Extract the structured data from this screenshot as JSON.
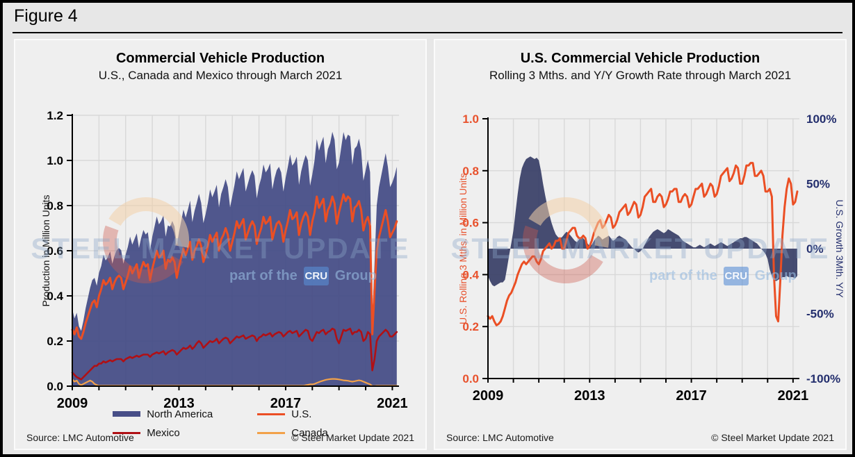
{
  "figure_label": "Figure 4",
  "watermark": {
    "line1": "STEEL MARKET UPDATE",
    "part_of": "part of the",
    "cru": "CRU",
    "group": "Group"
  },
  "colors": {
    "page_bg": "#e7e7e7",
    "panel_bg": "#efefef",
    "grid": "#d8d8d8",
    "axis": "#000000",
    "north_america_area": "#474e87",
    "us_line": "#eb4f24",
    "mexico_line": "#b01015",
    "canada_line": "#f2a149",
    "growth_area": "#3c4269",
    "rolling_line": "#eb4f24",
    "watermark_text": "#8ca6c7",
    "cru_badge_bg": "#588ed5"
  },
  "panels": [
    {
      "source": "Source: LMC Automotive",
      "copyright": "© Steel Market Update 2021"
    },
    {
      "source": "Source: LMC Automotive",
      "copyright": "© Steel Market Update 2021"
    }
  ],
  "chart_data": [
    {
      "type": "area+line",
      "title": "Commercial Vehicle Production",
      "subtitle": "U.S., Canada and Mexico through March 2021",
      "ylabel": "Production in Million Units",
      "x_interval": "monthly",
      "x_start": "2009-01",
      "x_end": "2021-03",
      "x_range": [
        2009,
        2021.25
      ],
      "xticks": [
        2009,
        2013,
        2017,
        2021
      ],
      "xtick_labels": [
        "2009",
        "2013",
        "2017",
        "2021"
      ],
      "ylim": [
        0,
        1.2
      ],
      "yticks": [
        0,
        0.2,
        0.4,
        0.6,
        0.8,
        1.0,
        1.2
      ],
      "ytick_labels": [
        "0.0",
        "0.2",
        "0.4",
        "0.6",
        "0.8",
        "1.0",
        "1.2"
      ],
      "grid": true,
      "legend_position": "bottom",
      "series": [
        {
          "name": "North America",
          "type": "area",
          "color": "#474e87",
          "baseline": 0,
          "values": [
            0.34,
            0.3,
            0.325,
            0.265,
            0.245,
            0.29,
            0.345,
            0.39,
            0.435,
            0.47,
            0.48,
            0.445,
            0.502,
            0.532,
            0.582,
            0.557,
            0.572,
            0.597,
            0.542,
            0.577,
            0.602,
            0.612,
            0.602,
            0.542,
            0.582,
            0.617,
            0.662,
            0.627,
            0.652,
            0.677,
            0.612,
            0.657,
            0.692,
            0.672,
            0.682,
            0.602,
            0.662,
            0.707,
            0.752,
            0.717,
            0.732,
            0.757,
            0.662,
            0.712,
            0.707,
            0.732,
            0.707,
            0.622,
            0.682,
            0.732,
            0.782,
            0.747,
            0.782,
            0.822,
            0.727,
            0.777,
            0.812,
            0.852,
            0.812,
            0.722,
            0.762,
            0.812,
            0.872,
            0.837,
            0.862,
            0.892,
            0.792,
            0.852,
            0.882,
            0.917,
            0.882,
            0.792,
            0.842,
            0.892,
            0.952,
            0.917,
            0.942,
            0.967,
            0.862,
            0.897,
            0.932,
            0.957,
            0.932,
            0.832,
            0.887,
            0.922,
            0.982,
            0.947,
            0.962,
            0.987,
            0.872,
            0.922,
            0.957,
            0.972,
            0.947,
            0.862,
            0.922,
            0.972,
            1.027,
            0.977,
            0.992,
            1.017,
            0.892,
            0.952,
            0.992,
            1.024,
            1.001,
            0.888,
            0.938,
            1.0,
            1.094,
            1.043,
            1.077,
            1.105,
            0.988,
            1.05,
            1.076,
            1.127,
            1.092,
            0.961,
            0.99,
            1.058,
            1.126,
            1.09,
            1.114,
            1.107,
            0.98,
            1.052,
            1.064,
            1.096,
            1.044,
            0.91,
            0.956,
            1.002,
            0.948,
            0.301,
            0.541,
            0.802,
            0.882,
            0.932,
            0.982,
            1.032,
            0.972,
            0.882,
            0.902,
            0.932,
            0.972
          ]
        },
        {
          "name": "U.S.",
          "type": "line",
          "color": "#eb4f24",
          "width": 3,
          "values": [
            0.25,
            0.23,
            0.26,
            0.22,
            0.21,
            0.24,
            0.28,
            0.31,
            0.34,
            0.37,
            0.38,
            0.35,
            0.4,
            0.43,
            0.47,
            0.45,
            0.46,
            0.48,
            0.43,
            0.46,
            0.48,
            0.49,
            0.48,
            0.43,
            0.46,
            0.49,
            0.53,
            0.5,
            0.52,
            0.54,
            0.48,
            0.52,
            0.55,
            0.53,
            0.54,
            0.47,
            0.52,
            0.56,
            0.6,
            0.57,
            0.58,
            0.6,
            0.52,
            0.56,
            0.55,
            0.57,
            0.55,
            0.48,
            0.53,
            0.57,
            0.61,
            0.58,
            0.61,
            0.64,
            0.56,
            0.6,
            0.62,
            0.65,
            0.62,
            0.55,
            0.58,
            0.62,
            0.67,
            0.64,
            0.66,
            0.68,
            0.6,
            0.65,
            0.67,
            0.7,
            0.67,
            0.6,
            0.64,
            0.68,
            0.73,
            0.7,
            0.72,
            0.74,
            0.65,
            0.68,
            0.71,
            0.73,
            0.71,
            0.63,
            0.67,
            0.7,
            0.75,
            0.72,
            0.73,
            0.75,
            0.65,
            0.69,
            0.72,
            0.73,
            0.71,
            0.64,
            0.69,
            0.73,
            0.78,
            0.74,
            0.75,
            0.77,
            0.67,
            0.72,
            0.75,
            0.77,
            0.75,
            0.67,
            0.73,
            0.77,
            0.84,
            0.79,
            0.81,
            0.83,
            0.73,
            0.78,
            0.8,
            0.84,
            0.81,
            0.72,
            0.77,
            0.81,
            0.85,
            0.82,
            0.84,
            0.83,
            0.73,
            0.79,
            0.8,
            0.82,
            0.78,
            0.69,
            0.73,
            0.75,
            0.71,
            0.23,
            0.42,
            0.6,
            0.66,
            0.7,
            0.74,
            0.78,
            0.73,
            0.66,
            0.68,
            0.7,
            0.73
          ]
        },
        {
          "name": "Mexico",
          "type": "line",
          "color": "#b01015",
          "width": 2.6,
          "values": [
            0.06,
            0.05,
            0.04,
            0.035,
            0.03,
            0.04,
            0.05,
            0.06,
            0.07,
            0.08,
            0.09,
            0.09,
            0.1,
            0.1,
            0.11,
            0.105,
            0.11,
            0.115,
            0.11,
            0.115,
            0.12,
            0.12,
            0.12,
            0.11,
            0.12,
            0.125,
            0.13,
            0.125,
            0.13,
            0.135,
            0.13,
            0.135,
            0.14,
            0.14,
            0.14,
            0.13,
            0.14,
            0.145,
            0.15,
            0.145,
            0.15,
            0.155,
            0.14,
            0.15,
            0.155,
            0.16,
            0.155,
            0.14,
            0.15,
            0.16,
            0.17,
            0.165,
            0.17,
            0.18,
            0.165,
            0.175,
            0.19,
            0.2,
            0.19,
            0.17,
            0.18,
            0.19,
            0.2,
            0.195,
            0.2,
            0.21,
            0.19,
            0.2,
            0.21,
            0.215,
            0.21,
            0.19,
            0.2,
            0.21,
            0.22,
            0.215,
            0.22,
            0.225,
            0.21,
            0.215,
            0.22,
            0.225,
            0.22,
            0.2,
            0.215,
            0.22,
            0.23,
            0.225,
            0.23,
            0.235,
            0.22,
            0.23,
            0.235,
            0.24,
            0.235,
            0.22,
            0.23,
            0.24,
            0.245,
            0.235,
            0.24,
            0.245,
            0.22,
            0.23,
            0.24,
            0.25,
            0.245,
            0.21,
            0.2,
            0.22,
            0.24,
            0.235,
            0.245,
            0.25,
            0.23,
            0.24,
            0.245,
            0.255,
            0.25,
            0.21,
            0.19,
            0.22,
            0.25,
            0.245,
            0.25,
            0.255,
            0.23,
            0.24,
            0.24,
            0.25,
            0.24,
            0.2,
            0.21,
            0.24,
            0.23,
            0.07,
            0.12,
            0.2,
            0.22,
            0.23,
            0.24,
            0.25,
            0.24,
            0.22,
            0.22,
            0.23,
            0.24
          ]
        },
        {
          "name": "Canada",
          "type": "line",
          "color": "#f2a149",
          "width": 2.2,
          "values": [
            0.03,
            0.02,
            0.025,
            0.01,
            0.005,
            0.01,
            0.015,
            0.02,
            0.025,
            0.02,
            0.01,
            0.005,
            0.002,
            0.002,
            0.002,
            0.002,
            0.002,
            0.002,
            0.002,
            0.002,
            0.002,
            0.002,
            0.002,
            0.002,
            0.002,
            0.002,
            0.002,
            0.002,
            0.002,
            0.002,
            0.002,
            0.002,
            0.002,
            0.002,
            0.002,
            0.002,
            0.002,
            0.002,
            0.002,
            0.002,
            0.002,
            0.002,
            0.002,
            0.002,
            0.002,
            0.002,
            0.002,
            0.002,
            0.002,
            0.002,
            0.002,
            0.002,
            0.002,
            0.002,
            0.002,
            0.002,
            0.002,
            0.002,
            0.002,
            0.002,
            0.002,
            0.002,
            0.002,
            0.002,
            0.002,
            0.002,
            0.002,
            0.002,
            0.002,
            0.002,
            0.002,
            0.002,
            0.002,
            0.002,
            0.002,
            0.002,
            0.002,
            0.002,
            0.002,
            0.002,
            0.002,
            0.002,
            0.002,
            0.002,
            0.002,
            0.002,
            0.002,
            0.002,
            0.002,
            0.002,
            0.002,
            0.002,
            0.002,
            0.002,
            0.002,
            0.002,
            0.002,
            0.002,
            0.002,
            0.002,
            0.002,
            0.002,
            0.002,
            0.002,
            0.002,
            0.004,
            0.006,
            0.008,
            0.008,
            0.01,
            0.014,
            0.018,
            0.022,
            0.025,
            0.028,
            0.03,
            0.031,
            0.032,
            0.032,
            0.031,
            0.03,
            0.028,
            0.026,
            0.025,
            0.024,
            0.022,
            0.02,
            0.022,
            0.024,
            0.026,
            0.024,
            0.02,
            0.016,
            0.012,
            0.008,
            0.001,
            0.001,
            0.002,
            0.002,
            0.002,
            0.002,
            0.002,
            0.002,
            0.002,
            0.002,
            0.002,
            0.002
          ]
        }
      ],
      "source": "Source: LMC Automotive",
      "copyright": "© Steel Market Update 2021"
    },
    {
      "type": "dual-axis area+line",
      "title": "U.S. Commercial Vehicle Production",
      "subtitle": "Rolling 3 Mths. and Y/Y Growth Rate through March 2021",
      "ylabel_left": "U.S. Rolling 3 Mths. in Million Units",
      "ylabel_right": "U.S. Growth 3Mth. Y/Y",
      "ylabel_color_left": "#e8512c",
      "ylabel_color_right": "#232e6d",
      "x_interval": "monthly",
      "x_start": "2009-01",
      "x_end": "2021-03",
      "x_range": [
        2009,
        2021.25
      ],
      "xticks": [
        2009,
        2013,
        2017,
        2021
      ],
      "xtick_labels": [
        "2009",
        "2013",
        "2017",
        "2021"
      ],
      "ylim_left": [
        0,
        1.0
      ],
      "yticks_left": [
        0,
        0.2,
        0.4,
        0.6,
        0.8,
        1.0
      ],
      "ytick_labels_left": [
        "0.0",
        "0.2",
        "0.4",
        "0.6",
        "0.8",
        "1.0"
      ],
      "ylim_right": [
        -100,
        100
      ],
      "yticks_right": [
        100,
        50,
        0,
        -50,
        -100
      ],
      "ytick_labels_right": [
        "100%",
        "50%",
        "0%",
        "-50%",
        "-100%"
      ],
      "grid": true,
      "series": [
        {
          "name": "U.S. Growth 3Mth. Y/Y",
          "type": "area",
          "axis": "right",
          "color": "#3c4269",
          "baseline": 0,
          "values": [
            -21,
            -25,
            -28,
            -29,
            -28,
            -27,
            -26,
            -26,
            -24,
            -15,
            -5,
            4,
            14,
            28,
            42,
            54,
            62,
            66,
            69,
            70,
            71,
            70,
            69,
            70,
            68,
            60,
            50,
            41,
            33,
            26,
            20,
            15,
            11,
            9,
            8,
            9,
            11,
            13,
            12,
            10,
            8,
            6,
            5,
            7,
            9,
            8,
            6,
            4,
            2,
            3,
            6,
            8,
            10,
            9,
            7,
            8,
            9,
            10,
            8,
            6,
            7,
            9,
            10,
            9,
            8,
            7,
            5,
            3,
            1,
            0,
            -2,
            -3,
            -2,
            0,
            3,
            6,
            9,
            11,
            13,
            14,
            15,
            14,
            13,
            12,
            13,
            15,
            14,
            13,
            12,
            11,
            10,
            8,
            6,
            5,
            4,
            3,
            2,
            1,
            1,
            2,
            3,
            2,
            1,
            2,
            3,
            4,
            3,
            2,
            3,
            4,
            5,
            4,
            3,
            2,
            3,
            4,
            5,
            6,
            7,
            8,
            8,
            9,
            9,
            8,
            7,
            6,
            5,
            4,
            2,
            0,
            -2,
            -4,
            -8,
            -16,
            -21,
            -24,
            -25,
            -24,
            -23,
            -22,
            -22,
            -21,
            -22,
            -22,
            -22,
            -23,
            -21
          ]
        },
        {
          "name": "U.S. Rolling 3 Mths.",
          "type": "line",
          "axis": "left",
          "color": "#eb4f24",
          "width": 3,
          "values": [
            0.24,
            0.23,
            0.24,
            0.22,
            0.205,
            0.21,
            0.22,
            0.24,
            0.27,
            0.3,
            0.32,
            0.33,
            0.35,
            0.37,
            0.4,
            0.42,
            0.44,
            0.45,
            0.44,
            0.45,
            0.46,
            0.47,
            0.47,
            0.45,
            0.44,
            0.46,
            0.49,
            0.5,
            0.51,
            0.52,
            0.5,
            0.51,
            0.53,
            0.53,
            0.54,
            0.5,
            0.5,
            0.53,
            0.56,
            0.57,
            0.58,
            0.58,
            0.55,
            0.54,
            0.54,
            0.55,
            0.54,
            0.5,
            0.51,
            0.53,
            0.56,
            0.58,
            0.6,
            0.61,
            0.58,
            0.59,
            0.61,
            0.63,
            0.62,
            0.58,
            0.59,
            0.61,
            0.64,
            0.65,
            0.66,
            0.67,
            0.63,
            0.64,
            0.66,
            0.68,
            0.67,
            0.62,
            0.63,
            0.66,
            0.7,
            0.71,
            0.72,
            0.73,
            0.68,
            0.68,
            0.7,
            0.71,
            0.7,
            0.66,
            0.67,
            0.69,
            0.72,
            0.72,
            0.73,
            0.73,
            0.68,
            0.68,
            0.7,
            0.71,
            0.7,
            0.66,
            0.67,
            0.7,
            0.73,
            0.73,
            0.74,
            0.75,
            0.7,
            0.71,
            0.73,
            0.75,
            0.74,
            0.7,
            0.71,
            0.74,
            0.78,
            0.79,
            0.8,
            0.81,
            0.76,
            0.77,
            0.79,
            0.82,
            0.81,
            0.75,
            0.75,
            0.78,
            0.82,
            0.82,
            0.83,
            0.83,
            0.78,
            0.78,
            0.79,
            0.8,
            0.78,
            0.72,
            0.72,
            0.73,
            0.7,
            0.4,
            0.24,
            0.22,
            0.38,
            0.55,
            0.66,
            0.73,
            0.77,
            0.75,
            0.67,
            0.68,
            0.72
          ]
        }
      ],
      "source": "Source: LMC Automotive",
      "copyright": "© Steel Market Update 2021"
    }
  ]
}
